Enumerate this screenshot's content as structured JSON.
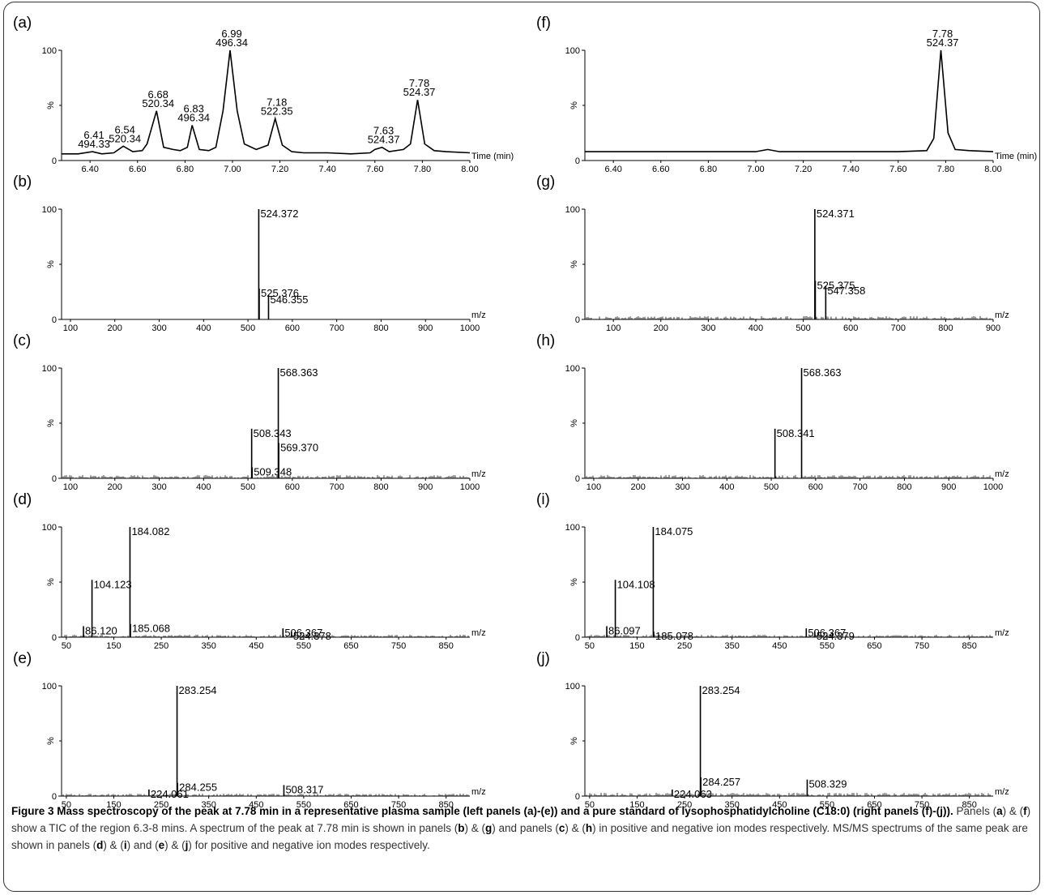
{
  "caption": {
    "figure_label": "Figure 3",
    "title": "Mass spectroscopy of the peak at 7.78 min in a representative plasma sample (left panels (a)-(e)) and a pure standard of lysophosphatidylcholine (C18:0) (right panels (f)-(j)).",
    "body": [
      {
        "t": " Panels ("
      },
      {
        "t": "a",
        "b": true
      },
      {
        "t": ") & ("
      },
      {
        "t": "f",
        "b": true
      },
      {
        "t": ") show a TIC of the region 6.3-8 mins. A spectrum of the peak at 7.78 min is shown in panels ("
      },
      {
        "t": "b",
        "b": true
      },
      {
        "t": ") & ("
      },
      {
        "t": "g",
        "b": true
      },
      {
        "t": ") and panels ("
      },
      {
        "t": "c",
        "b": true
      },
      {
        "t": ") & ("
      },
      {
        "t": "h",
        "b": true
      },
      {
        "t": ") in positive and negative ion modes respectively. MS/MS spectrums of the same peak are shown in panels ("
      },
      {
        "t": "d",
        "b": true
      },
      {
        "t": ") & ("
      },
      {
        "t": "i",
        "b": true
      },
      {
        "t": ") and ("
      },
      {
        "t": "e",
        "b": true
      },
      {
        "t": ") & ("
      },
      {
        "t": "j",
        "b": true
      },
      {
        "t": ") for positive and negative ion modes respectively."
      }
    ]
  },
  "chart_data": [
    {
      "panel": "(a)",
      "type": "line",
      "x_unit": "Time (min)",
      "ylabel": "%",
      "ylim": [
        0,
        100
      ],
      "xlim": [
        6.28,
        8.0
      ],
      "x_ticks": [
        "6.40",
        "6.60",
        "6.80",
        "7.00",
        "7.20",
        "7.40",
        "7.60",
        "7.80",
        "8.00"
      ],
      "y_ticks": [
        "0",
        "100"
      ],
      "trace": [
        [
          6.28,
          6
        ],
        [
          6.35,
          6
        ],
        [
          6.41,
          8
        ],
        [
          6.45,
          6
        ],
        [
          6.5,
          7
        ],
        [
          6.54,
          13
        ],
        [
          6.58,
          8
        ],
        [
          6.62,
          9
        ],
        [
          6.64,
          15
        ],
        [
          6.68,
          45
        ],
        [
          6.71,
          12
        ],
        [
          6.75,
          10
        ],
        [
          6.78,
          9
        ],
        [
          6.81,
          12
        ],
        [
          6.83,
          32
        ],
        [
          6.86,
          10
        ],
        [
          6.9,
          9
        ],
        [
          6.93,
          12
        ],
        [
          6.96,
          45
        ],
        [
          6.99,
          100
        ],
        [
          7.02,
          45
        ],
        [
          7.05,
          15
        ],
        [
          7.1,
          10
        ],
        [
          7.15,
          14
        ],
        [
          7.18,
          38
        ],
        [
          7.21,
          14
        ],
        [
          7.25,
          8
        ],
        [
          7.3,
          7
        ],
        [
          7.4,
          7
        ],
        [
          7.5,
          6
        ],
        [
          7.58,
          7
        ],
        [
          7.6,
          10
        ],
        [
          7.63,
          12
        ],
        [
          7.66,
          8
        ],
        [
          7.72,
          10
        ],
        [
          7.75,
          15
        ],
        [
          7.78,
          55
        ],
        [
          7.81,
          15
        ],
        [
          7.85,
          9
        ],
        [
          7.9,
          8
        ],
        [
          8.0,
          7
        ]
      ],
      "annotations": [
        {
          "x": 6.41,
          "labels": [
            "6.41",
            "494.33"
          ]
        },
        {
          "x": 6.54,
          "labels": [
            "6.54",
            "520.34"
          ]
        },
        {
          "x": 6.68,
          "labels": [
            "6.68",
            "520.34"
          ]
        },
        {
          "x": 6.83,
          "labels": [
            "6.83",
            "496.34"
          ]
        },
        {
          "x": 6.99,
          "labels": [
            "6.99",
            "496.34"
          ]
        },
        {
          "x": 7.18,
          "labels": [
            "7.18",
            "522.35"
          ]
        },
        {
          "x": 7.63,
          "labels": [
            "7.63",
            "524.37"
          ]
        },
        {
          "x": 7.78,
          "labels": [
            "7.78",
            "524.37"
          ]
        }
      ]
    },
    {
      "panel": "(b)",
      "type": "bar",
      "x_unit": "m/z",
      "ylabel": "%",
      "ylim": [
        0,
        100
      ],
      "xlim": [
        80,
        1000
      ],
      "x_ticks": [
        "100",
        "200",
        "300",
        "400",
        "500",
        "600",
        "700",
        "800",
        "900",
        "1000"
      ],
      "y_ticks": [
        "0",
        "100"
      ],
      "peaks": [
        {
          "mz": 524.372,
          "y": 100,
          "label": "524.372"
        },
        {
          "mz": 525.376,
          "y": 28,
          "label": "525.376"
        },
        {
          "mz": 546.355,
          "y": 22,
          "label": "546.355"
        }
      ],
      "noise": 0.5
    },
    {
      "panel": "(c)",
      "type": "bar",
      "x_unit": "m/z",
      "ylabel": "%",
      "ylim": [
        0,
        100
      ],
      "xlim": [
        80,
        1000
      ],
      "x_ticks": [
        "100",
        "200",
        "300",
        "400",
        "500",
        "600",
        "700",
        "800",
        "900",
        "1000"
      ],
      "y_ticks": [
        "0",
        "100"
      ],
      "peaks": [
        {
          "mz": 508.343,
          "y": 45,
          "label": "508.343"
        },
        {
          "mz": 509.348,
          "y": 10,
          "label": "509.348"
        },
        {
          "mz": 568.363,
          "y": 100,
          "label": "568.363"
        },
        {
          "mz": 569.37,
          "y": 32,
          "label": "569.370"
        }
      ],
      "noise": 4
    },
    {
      "panel": "(d)",
      "type": "bar",
      "x_unit": "m/z",
      "ylabel": "%",
      "ylim": [
        0,
        100
      ],
      "xlim": [
        40,
        900
      ],
      "x_ticks": [
        "50",
        "150",
        "250",
        "350",
        "450",
        "550",
        "650",
        "750",
        "850"
      ],
      "y_ticks": [
        "0",
        "100"
      ],
      "peaks": [
        {
          "mz": 86.12,
          "y": 10,
          "label": "86.120"
        },
        {
          "mz": 104.123,
          "y": 52,
          "label": "104.123"
        },
        {
          "mz": 184.082,
          "y": 100,
          "label": "184.082"
        },
        {
          "mz": 185.068,
          "y": 12,
          "label": "185.068"
        },
        {
          "mz": 506.367,
          "y": 8,
          "label": "506.367"
        },
        {
          "mz": 524.378,
          "y": 5,
          "label": "524.378"
        }
      ],
      "noise": 3
    },
    {
      "panel": "(e)",
      "type": "bar",
      "x_unit": "m/z",
      "ylabel": "%",
      "ylim": [
        0,
        100
      ],
      "xlim": [
        40,
        900
      ],
      "x_ticks": [
        "50",
        "150",
        "250",
        "350",
        "450",
        "550",
        "650",
        "750",
        "850"
      ],
      "y_ticks": [
        "0",
        "100"
      ],
      "peaks": [
        {
          "mz": 224.061,
          "y": 6,
          "label": "224.061"
        },
        {
          "mz": 283.254,
          "y": 100,
          "label": "283.254"
        },
        {
          "mz": 284.255,
          "y": 12,
          "label": "284.255"
        },
        {
          "mz": 508.317,
          "y": 10,
          "label": "508.317"
        }
      ],
      "noise": 3
    },
    {
      "panel": "(f)",
      "type": "line",
      "x_unit": "Time (min)",
      "ylabel": "%",
      "ylim": [
        0,
        100
      ],
      "xlim": [
        6.28,
        8.0
      ],
      "x_ticks": [
        "6.40",
        "6.60",
        "6.80",
        "7.00",
        "7.20",
        "7.40",
        "7.60",
        "7.80",
        "8.00"
      ],
      "y_ticks": [
        "0",
        "100"
      ],
      "trace": [
        [
          6.28,
          8
        ],
        [
          6.5,
          8
        ],
        [
          6.8,
          8
        ],
        [
          7.0,
          8
        ],
        [
          7.05,
          10
        ],
        [
          7.1,
          8
        ],
        [
          7.4,
          8
        ],
        [
          7.6,
          8
        ],
        [
          7.72,
          9
        ],
        [
          7.75,
          20
        ],
        [
          7.78,
          100
        ],
        [
          7.81,
          25
        ],
        [
          7.84,
          10
        ],
        [
          7.9,
          9
        ],
        [
          8.0,
          8
        ]
      ],
      "annotations": [
        {
          "x": 7.78,
          "labels": [
            "7.78",
            "524.37"
          ]
        }
      ]
    },
    {
      "panel": "(g)",
      "type": "bar",
      "x_unit": "m/z",
      "ylabel": "%",
      "ylim": [
        0,
        100
      ],
      "xlim": [
        40,
        900
      ],
      "x_ticks": [
        "100",
        "200",
        "300",
        "400",
        "500",
        "600",
        "700",
        "800",
        "900"
      ],
      "y_ticks": [
        "0",
        "100"
      ],
      "peaks": [
        {
          "mz": 524.371,
          "y": 100,
          "label": "524.371"
        },
        {
          "mz": 525.375,
          "y": 35,
          "label": "525.375"
        },
        {
          "mz": 547.358,
          "y": 30,
          "label": "547.358"
        }
      ],
      "noise": 4
    },
    {
      "panel": "(h)",
      "type": "bar",
      "x_unit": "m/z",
      "ylabel": "%",
      "ylim": [
        0,
        100
      ],
      "xlim": [
        80,
        1000
      ],
      "x_ticks": [
        "100",
        "200",
        "300",
        "400",
        "500",
        "600",
        "700",
        "800",
        "900",
        "1000"
      ],
      "y_ticks": [
        "0",
        "100"
      ],
      "peaks": [
        {
          "mz": 508.341,
          "y": 45,
          "label": "508.341"
        },
        {
          "mz": 568.363,
          "y": 100,
          "label": "568.363"
        }
      ],
      "noise": 4
    },
    {
      "panel": "(i)",
      "type": "bar",
      "x_unit": "m/z",
      "ylabel": "%",
      "ylim": [
        0,
        100
      ],
      "xlim": [
        40,
        900
      ],
      "x_ticks": [
        "50",
        "150",
        "250",
        "350",
        "450",
        "550",
        "650",
        "750",
        "850"
      ],
      "y_ticks": [
        "0",
        "100"
      ],
      "peaks": [
        {
          "mz": 86.097,
          "y": 10,
          "label": "86.097"
        },
        {
          "mz": 104.108,
          "y": 52,
          "label": "104.108"
        },
        {
          "mz": 184.075,
          "y": 100,
          "label": "184.075"
        },
        {
          "mz": 185.078,
          "y": 5,
          "label": "185.078"
        },
        {
          "mz": 506.367,
          "y": 8,
          "label": "506.367"
        },
        {
          "mz": 524.379,
          "y": 5,
          "label": "524.379"
        }
      ],
      "noise": 3
    },
    {
      "panel": "(j)",
      "type": "bar",
      "x_unit": "m/z",
      "ylabel": "%",
      "ylim": [
        0,
        100
      ],
      "xlim": [
        40,
        900
      ],
      "x_ticks": [
        "50",
        "150",
        "250",
        "350",
        "450",
        "550",
        "650",
        "750",
        "850"
      ],
      "y_ticks": [
        "0",
        "100"
      ],
      "peaks": [
        {
          "mz": 224.063,
          "y": 6,
          "label": "224.063"
        },
        {
          "mz": 283.254,
          "y": 100,
          "label": "283.254"
        },
        {
          "mz": 284.257,
          "y": 17,
          "label": "284.257"
        },
        {
          "mz": 508.329,
          "y": 15,
          "label": "508.329"
        }
      ],
      "noise": 4
    }
  ]
}
